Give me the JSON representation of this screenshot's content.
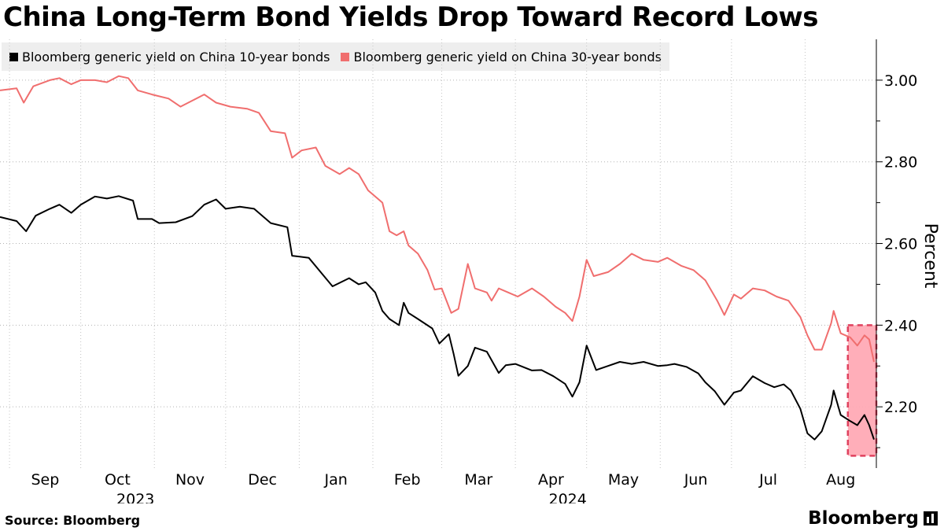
{
  "chart_data": {
    "type": "line",
    "title": "China Long-Term Bond Yields Drop Toward Record Lows",
    "ylabel": "Percent",
    "ylim": [
      2.05,
      3.1
    ],
    "yticks": [
      2.2,
      2.4,
      2.6,
      2.8,
      3.0
    ],
    "ytick_labels": [
      "2.20",
      "2.40",
      "2.60",
      "2.80",
      "3.00"
    ],
    "grid": "horizontal-and-vertical-dotted",
    "legend_position": "top-left",
    "x_range": [
      "2023-08-28",
      "2024-08-31"
    ],
    "month_ticks": [
      {
        "date": "2023-09-01",
        "label": "Sep"
      },
      {
        "date": "2023-10-01",
        "label": "Oct"
      },
      {
        "date": "2023-11-01",
        "label": "Nov"
      },
      {
        "date": "2023-12-01",
        "label": "Dec"
      },
      {
        "date": "2024-01-01",
        "label": "Jan"
      },
      {
        "date": "2024-02-01",
        "label": "Feb"
      },
      {
        "date": "2024-03-01",
        "label": "Mar"
      },
      {
        "date": "2024-04-01",
        "label": "Apr"
      },
      {
        "date": "2024-05-01",
        "label": "May"
      },
      {
        "date": "2024-06-01",
        "label": "Jun"
      },
      {
        "date": "2024-07-01",
        "label": "Jul"
      },
      {
        "date": "2024-08-01",
        "label": "Aug"
      }
    ],
    "year_labels": [
      {
        "date": "2023-11-01",
        "label": "2023"
      },
      {
        "date": "2024-05-01",
        "label": "2024"
      }
    ],
    "highlight": {
      "x_start": "2024-08-19",
      "x_end": "2024-08-31",
      "y_low": 2.08,
      "y_high": 2.4,
      "color": "#ff6f84"
    },
    "series": [
      {
        "name": "Bloomberg generic yield on China 10-year bonds",
        "color": "#000000",
        "points": [
          [
            "2023-08-28",
            2.665
          ],
          [
            "2023-09-04",
            2.655
          ],
          [
            "2023-09-08",
            2.63
          ],
          [
            "2023-09-12",
            2.668
          ],
          [
            "2023-09-18",
            2.685
          ],
          [
            "2023-09-22",
            2.695
          ],
          [
            "2023-09-27",
            2.675
          ],
          [
            "2023-10-01",
            2.695
          ],
          [
            "2023-10-07",
            2.715
          ],
          [
            "2023-10-12",
            2.71
          ],
          [
            "2023-10-17",
            2.716
          ],
          [
            "2023-10-23",
            2.705
          ],
          [
            "2023-10-25",
            2.66
          ],
          [
            "2023-10-31",
            2.66
          ],
          [
            "2023-11-03",
            2.65
          ],
          [
            "2023-11-10",
            2.652
          ],
          [
            "2023-11-17",
            2.667
          ],
          [
            "2023-11-22",
            2.695
          ],
          [
            "2023-11-27",
            2.708
          ],
          [
            "2023-12-01",
            2.685
          ],
          [
            "2023-12-07",
            2.69
          ],
          [
            "2023-12-13",
            2.685
          ],
          [
            "2023-12-20",
            2.65
          ],
          [
            "2023-12-27",
            2.64
          ],
          [
            "2023-12-29",
            2.57
          ],
          [
            "2024-01-05",
            2.565
          ],
          [
            "2024-01-10",
            2.53
          ],
          [
            "2024-01-15",
            2.495
          ],
          [
            "2024-01-22",
            2.515
          ],
          [
            "2024-01-26",
            2.5
          ],
          [
            "2024-01-29",
            2.505
          ],
          [
            "2024-02-02",
            2.48
          ],
          [
            "2024-02-05",
            2.435
          ],
          [
            "2024-02-08",
            2.415
          ],
          [
            "2024-02-12",
            2.4
          ],
          [
            "2024-02-14",
            2.455
          ],
          [
            "2024-02-16",
            2.43
          ],
          [
            "2024-02-20",
            2.415
          ],
          [
            "2024-02-26",
            2.392
          ],
          [
            "2024-02-29",
            2.355
          ],
          [
            "2024-03-04",
            2.378
          ],
          [
            "2024-03-06",
            2.33
          ],
          [
            "2024-03-08",
            2.276
          ],
          [
            "2024-03-12",
            2.3
          ],
          [
            "2024-03-15",
            2.345
          ],
          [
            "2024-03-20",
            2.335
          ],
          [
            "2024-03-25",
            2.283
          ],
          [
            "2024-03-28",
            2.302
          ],
          [
            "2024-04-01",
            2.305
          ],
          [
            "2024-04-08",
            2.289
          ],
          [
            "2024-04-12",
            2.29
          ],
          [
            "2024-04-17",
            2.275
          ],
          [
            "2024-04-22",
            2.256
          ],
          [
            "2024-04-25",
            2.225
          ],
          [
            "2024-04-28",
            2.26
          ],
          [
            "2024-05-01",
            2.35
          ],
          [
            "2024-05-05",
            2.29
          ],
          [
            "2024-05-10",
            2.3
          ],
          [
            "2024-05-15",
            2.31
          ],
          [
            "2024-05-20",
            2.305
          ],
          [
            "2024-05-25",
            2.31
          ],
          [
            "2024-05-31",
            2.3
          ],
          [
            "2024-06-04",
            2.302
          ],
          [
            "2024-06-07",
            2.305
          ],
          [
            "2024-06-12",
            2.298
          ],
          [
            "2024-06-17",
            2.282
          ],
          [
            "2024-06-20",
            2.26
          ],
          [
            "2024-06-24",
            2.238
          ],
          [
            "2024-06-28",
            2.205
          ],
          [
            "2024-07-02",
            2.235
          ],
          [
            "2024-07-05",
            2.24
          ],
          [
            "2024-07-10",
            2.275
          ],
          [
            "2024-07-15",
            2.258
          ],
          [
            "2024-07-19",
            2.248
          ],
          [
            "2024-07-23",
            2.255
          ],
          [
            "2024-07-26",
            2.24
          ],
          [
            "2024-07-30",
            2.195
          ],
          [
            "2024-08-02",
            2.135
          ],
          [
            "2024-08-05",
            2.12
          ],
          [
            "2024-08-08",
            2.14
          ],
          [
            "2024-08-12",
            2.205
          ],
          [
            "2024-08-13",
            2.24
          ],
          [
            "2024-08-16",
            2.18
          ],
          [
            "2024-08-20",
            2.165
          ],
          [
            "2024-08-23",
            2.155
          ],
          [
            "2024-08-26",
            2.18
          ],
          [
            "2024-08-28",
            2.155
          ],
          [
            "2024-08-30",
            2.12
          ]
        ]
      },
      {
        "name": "Bloomberg generic yield on China 30-year bonds",
        "color": "#f06e6e",
        "points": [
          [
            "2023-08-28",
            2.975
          ],
          [
            "2023-09-04",
            2.98
          ],
          [
            "2023-09-07",
            2.945
          ],
          [
            "2023-09-11",
            2.985
          ],
          [
            "2023-09-18",
            3.0
          ],
          [
            "2023-09-22",
            3.005
          ],
          [
            "2023-09-27",
            2.99
          ],
          [
            "2023-10-01",
            3.0
          ],
          [
            "2023-10-07",
            3.0
          ],
          [
            "2023-10-12",
            2.995
          ],
          [
            "2023-10-17",
            3.01
          ],
          [
            "2023-10-21",
            3.005
          ],
          [
            "2023-10-25",
            2.975
          ],
          [
            "2023-10-31",
            2.965
          ],
          [
            "2023-11-07",
            2.955
          ],
          [
            "2023-11-12",
            2.935
          ],
          [
            "2023-11-17",
            2.95
          ],
          [
            "2023-11-22",
            2.965
          ],
          [
            "2023-11-27",
            2.945
          ],
          [
            "2023-12-03",
            2.935
          ],
          [
            "2023-12-10",
            2.93
          ],
          [
            "2023-12-15",
            2.92
          ],
          [
            "2023-12-20",
            2.875
          ],
          [
            "2023-12-26",
            2.87
          ],
          [
            "2023-12-29",
            2.81
          ],
          [
            "2024-01-02",
            2.828
          ],
          [
            "2024-01-08",
            2.835
          ],
          [
            "2024-01-12",
            2.79
          ],
          [
            "2024-01-18",
            2.77
          ],
          [
            "2024-01-22",
            2.785
          ],
          [
            "2024-01-26",
            2.77
          ],
          [
            "2024-01-30",
            2.73
          ],
          [
            "2024-02-05",
            2.7
          ],
          [
            "2024-02-08",
            2.63
          ],
          [
            "2024-02-11",
            2.62
          ],
          [
            "2024-02-14",
            2.63
          ],
          [
            "2024-02-16",
            2.595
          ],
          [
            "2024-02-20",
            2.575
          ],
          [
            "2024-02-24",
            2.535
          ],
          [
            "2024-02-27",
            2.487
          ],
          [
            "2024-03-01",
            2.49
          ],
          [
            "2024-03-05",
            2.43
          ],
          [
            "2024-03-08",
            2.44
          ],
          [
            "2024-03-12",
            2.55
          ],
          [
            "2024-03-15",
            2.49
          ],
          [
            "2024-03-20",
            2.48
          ],
          [
            "2024-03-22",
            2.46
          ],
          [
            "2024-03-25",
            2.49
          ],
          [
            "2024-03-29",
            2.48
          ],
          [
            "2024-04-02",
            2.47
          ],
          [
            "2024-04-08",
            2.49
          ],
          [
            "2024-04-13",
            2.47
          ],
          [
            "2024-04-18",
            2.445
          ],
          [
            "2024-04-22",
            2.43
          ],
          [
            "2024-04-25",
            2.41
          ],
          [
            "2024-04-28",
            2.47
          ],
          [
            "2024-05-01",
            2.56
          ],
          [
            "2024-05-04",
            2.52
          ],
          [
            "2024-05-10",
            2.53
          ],
          [
            "2024-05-15",
            2.55
          ],
          [
            "2024-05-20",
            2.575
          ],
          [
            "2024-05-25",
            2.56
          ],
          [
            "2024-05-31",
            2.555
          ],
          [
            "2024-06-04",
            2.565
          ],
          [
            "2024-06-10",
            2.545
          ],
          [
            "2024-06-15",
            2.535
          ],
          [
            "2024-06-20",
            2.51
          ],
          [
            "2024-06-25",
            2.46
          ],
          [
            "2024-06-28",
            2.425
          ],
          [
            "2024-07-02",
            2.475
          ],
          [
            "2024-07-05",
            2.465
          ],
          [
            "2024-07-10",
            2.49
          ],
          [
            "2024-07-15",
            2.485
          ],
          [
            "2024-07-20",
            2.47
          ],
          [
            "2024-07-25",
            2.46
          ],
          [
            "2024-07-30",
            2.42
          ],
          [
            "2024-08-02",
            2.375
          ],
          [
            "2024-08-05",
            2.34
          ],
          [
            "2024-08-08",
            2.34
          ],
          [
            "2024-08-12",
            2.405
          ],
          [
            "2024-08-13",
            2.435
          ],
          [
            "2024-08-16",
            2.38
          ],
          [
            "2024-08-20",
            2.37
          ],
          [
            "2024-08-23",
            2.35
          ],
          [
            "2024-08-26",
            2.375
          ],
          [
            "2024-08-28",
            2.365
          ],
          [
            "2024-08-30",
            2.31
          ]
        ]
      }
    ]
  },
  "legend": [
    {
      "label": "Bloomberg generic yield on China 10-year bonds",
      "color": "#000000"
    },
    {
      "label": "Bloomberg generic yield on China 30-year bonds",
      "color": "#f06e6e"
    }
  ],
  "footer": {
    "source": "Source: Bloomberg",
    "brand": "Bloomberg"
  }
}
